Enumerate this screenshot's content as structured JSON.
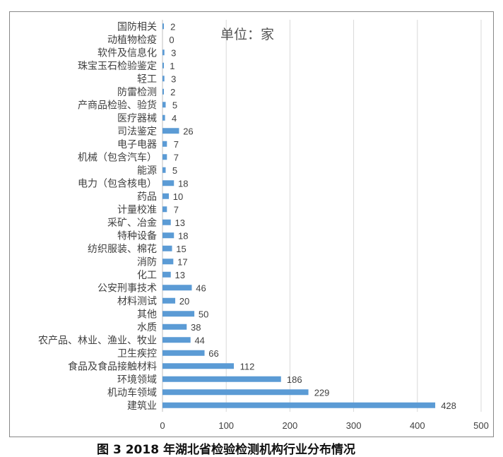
{
  "caption": "图 3   2018 年湖北省检验检测机构行业分布情况",
  "unit_note": "单位：家",
  "colors": {
    "bar": "#5B9BD5",
    "grid": "#d9d9d9",
    "axis": "#bfbfbf",
    "text": "#404040"
  },
  "chart_data": {
    "type": "bar",
    "orientation": "horizontal",
    "categories": [
      "国防相关",
      "动植物检疫",
      "软件及信息化",
      "珠宝玉石检验鉴定",
      "轻工",
      "防雷检测",
      "产商品检验、验货",
      "医疗器械",
      "司法鉴定",
      "电子电器",
      "机械（包含汽车）",
      "能源",
      "电力（包含核电）",
      "药品",
      "计量校准",
      "采矿、冶金",
      "特种设备",
      "纺织服装、棉花",
      "消防",
      "化工",
      "公安刑事技术",
      "材料测试",
      "其他",
      "水质",
      "农产品、林业、渔业、牧业",
      "卫生疾控",
      "食品及食品接触材料",
      "环境领域",
      "机动车领域",
      "建筑业"
    ],
    "values": [
      2,
      0,
      3,
      1,
      3,
      2,
      5,
      4,
      26,
      7,
      7,
      5,
      18,
      10,
      7,
      13,
      18,
      15,
      17,
      13,
      46,
      20,
      50,
      38,
      44,
      66,
      112,
      186,
      229,
      428
    ],
    "xlim": [
      0,
      500
    ],
    "xticks": [
      0,
      100,
      200,
      300,
      400,
      500
    ],
    "grid": "vertical",
    "data_labels": true,
    "legend": "none"
  }
}
